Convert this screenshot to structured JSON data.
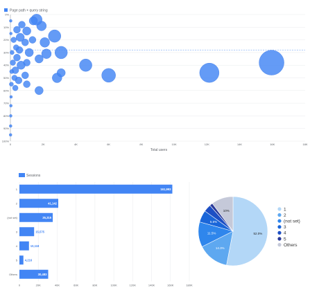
{
  "scatter_legend": "Page path + query string",
  "pie_legend": [
    "1",
    "2",
    "(not set)",
    "3",
    "4",
    "5",
    "Others"
  ],
  "colors": {
    "bubble": "#4285f4",
    "bubble_edge": "#3b78e7",
    "ref_line": "#8ab4f8",
    "grid": "#e8eaed",
    "axis_text": "#5f6368",
    "bar": "#4285f4",
    "pie": [
      "#b3d7f7",
      "#5ea8f0",
      "#2f86ec",
      "#1a66d9",
      "#1d4fc4",
      "#2a3a99",
      "#c5c9d9"
    ]
  },
  "chart_data": [
    {
      "type": "scatter",
      "title": "",
      "xlabel": "Total users",
      "ylabel": "",
      "x_ticks": [
        "0",
        "2K",
        "4K",
        "6K",
        "8K",
        "10K",
        "12K",
        "14K",
        "16K",
        "18K"
      ],
      "y_ticks": [
        "0%",
        "10%",
        "20%",
        "30%",
        "40%",
        "50%",
        "60%",
        "70%",
        "80%",
        "90%",
        "100%"
      ],
      "xlim": [
        0,
        18000
      ],
      "ylim": [
        0,
        100
      ],
      "y_inverted": true,
      "reference_line_y": 28,
      "series": [
        {
          "name": "Page path + query string",
          "points": [
            {
              "x": 15950,
              "y": 38,
              "r": 18
            },
            {
              "x": 12150,
              "y": 46,
              "r": 14
            },
            {
              "x": 6000,
              "y": 48,
              "r": 10
            },
            {
              "x": 4600,
              "y": 40,
              "r": 9
            },
            {
              "x": 3100,
              "y": 30,
              "r": 9
            },
            {
              "x": 2700,
              "y": 17,
              "r": 9
            },
            {
              "x": 2100,
              "y": 22,
              "r": 7
            },
            {
              "x": 2200,
              "y": 31,
              "r": 7
            },
            {
              "x": 1900,
              "y": 9,
              "r": 7
            },
            {
              "x": 1600,
              "y": 4,
              "r": 8
            },
            {
              "x": 1750,
              "y": 35,
              "r": 6
            },
            {
              "x": 2850,
              "y": 50,
              "r": 7
            },
            {
              "x": 3100,
              "y": 46,
              "r": 6
            },
            {
              "x": 1750,
              "y": 60,
              "r": 6
            },
            {
              "x": 1400,
              "y": 5,
              "r": 6
            },
            {
              "x": 1350,
              "y": 20,
              "r": 5
            },
            {
              "x": 1000,
              "y": 13,
              "r": 6
            },
            {
              "x": 1150,
              "y": 30,
              "r": 6
            },
            {
              "x": 900,
              "y": 22,
              "r": 5
            },
            {
              "x": 1000,
              "y": 38,
              "r": 5
            },
            {
              "x": 900,
              "y": 48,
              "r": 5
            },
            {
              "x": 1000,
              "y": 55,
              "r": 5
            },
            {
              "x": 700,
              "y": 8,
              "r": 5
            },
            {
              "x": 600,
              "y": 18,
              "r": 6
            },
            {
              "x": 550,
              "y": 28,
              "r": 5
            },
            {
              "x": 650,
              "y": 40,
              "r": 6
            },
            {
              "x": 500,
              "y": 52,
              "r": 5
            },
            {
              "x": 400,
              "y": 12,
              "r": 5
            },
            {
              "x": 350,
              "y": 26,
              "r": 4
            },
            {
              "x": 400,
              "y": 34,
              "r": 5
            },
            {
              "x": 300,
              "y": 44,
              "r": 5
            },
            {
              "x": 250,
              "y": 50,
              "r": 4
            },
            {
              "x": 300,
              "y": 58,
              "r": 4
            },
            {
              "x": 200,
              "y": 20,
              "r": 4
            },
            {
              "x": 150,
              "y": 38,
              "r": 4
            },
            {
              "x": 100,
              "y": 30,
              "r": 3
            },
            {
              "x": 80,
              "y": 45,
              "r": 3
            },
            {
              "x": 60,
              "y": 55,
              "r": 3
            },
            {
              "x": 40,
              "y": 65,
              "r": 2
            },
            {
              "x": 30,
              "y": 72,
              "r": 2
            },
            {
              "x": 20,
              "y": 80,
              "r": 2
            },
            {
              "x": 15,
              "y": 88,
              "r": 2
            },
            {
              "x": 10,
              "y": 95,
              "r": 2
            },
            {
              "x": 20,
              "y": 5,
              "r": 2
            },
            {
              "x": 30,
              "y": 15,
              "r": 2
            }
          ]
        }
      ]
    },
    {
      "type": "bar",
      "orientation": "horizontal",
      "title": "",
      "xlabel": "",
      "ylabel": "",
      "legend": "Sessions",
      "categories": [
        "1",
        "2",
        "(not set)",
        "3",
        "4",
        "5",
        "Others"
      ],
      "values": [
        161993,
        41142,
        35315,
        15575,
        10118,
        4216,
        30483
      ],
      "value_labels": [
        "161,993",
        "41,142",
        "35,315",
        "15,575",
        "10,118",
        "4,216",
        "30,483"
      ],
      "x_ticks": [
        "0",
        "20K",
        "40K",
        "60K",
        "80K",
        "100K",
        "120K",
        "140K",
        "160K",
        "180K"
      ],
      "xlim": [
        0,
        180000
      ]
    },
    {
      "type": "pie",
      "title": "",
      "legend_position": "right",
      "labels": [
        "1",
        "2",
        "(not set)",
        "3",
        "4",
        "5",
        "Others"
      ],
      "values": [
        52.0,
        14.3,
        11.5,
        5.5,
        3.4,
        1.4,
        10.0
      ],
      "value_labels": [
        "52.0%",
        "14.3%",
        "11.5%",
        "5.5%",
        "",
        "",
        "10%"
      ]
    }
  ]
}
